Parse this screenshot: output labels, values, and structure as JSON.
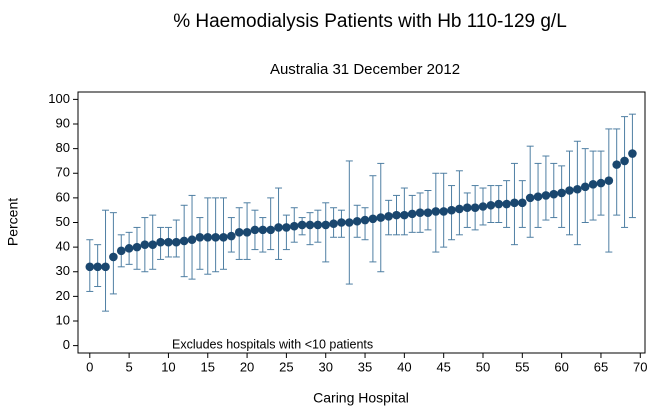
{
  "chart_data": {
    "type": "scatter",
    "title": "% Haemodialysis Patients with Hb 110-129 g/L",
    "subtitle": "Australia 31 December 2012",
    "annotation": "Excludes hospitals with <10 patients",
    "x_label": "Caring Hospital",
    "y_label": "Percent",
    "color": "#1a476f",
    "error_color": "#4f7fa3",
    "x": [
      0,
      1,
      2,
      3,
      4,
      5,
      6,
      7,
      8,
      9,
      10,
      11,
      12,
      13,
      14,
      15,
      16,
      17,
      18,
      19,
      20,
      21,
      22,
      23,
      24,
      25,
      26,
      27,
      28,
      29,
      30,
      31,
      32,
      33,
      34,
      35,
      36,
      37,
      38,
      39,
      40,
      41,
      42,
      43,
      44,
      45,
      46,
      47,
      48,
      49,
      50,
      51,
      52,
      53,
      54,
      55,
      56,
      57,
      58,
      59,
      60,
      61,
      62,
      63,
      64,
      65,
      66,
      67,
      68,
      69
    ],
    "values": [
      32,
      32,
      32,
      36,
      38.5,
      39.5,
      40,
      41,
      41,
      42,
      42,
      42,
      42.5,
      43,
      44,
      44,
      44,
      44,
      44.5,
      46,
      46,
      47,
      47,
      47,
      48,
      48,
      48.5,
      49,
      49,
      49,
      49,
      49.5,
      50,
      50,
      50.5,
      51,
      51.5,
      52,
      52.5,
      53,
      53,
      53.5,
      54,
      54,
      54.5,
      54.5,
      55,
      55.5,
      56,
      56,
      56.5,
      57,
      57.5,
      57.5,
      58,
      58,
      60,
      60.5,
      61,
      61.5,
      62,
      63,
      63.5,
      64.5,
      65.5,
      66,
      67,
      73.5,
      75,
      78
    ],
    "low": [
      22,
      24,
      14,
      21,
      32,
      33,
      31,
      30,
      31,
      35,
      36,
      36,
      28,
      27,
      31,
      29,
      30,
      31,
      38,
      35,
      35,
      39,
      38,
      39,
      35,
      39,
      42,
      45,
      41,
      42,
      34,
      44,
      44,
      25,
      44,
      43,
      34,
      30,
      45,
      45,
      45,
      46,
      46,
      47,
      38,
      40,
      43,
      45,
      48,
      47,
      49,
      50,
      50,
      48,
      41,
      48,
      44,
      48,
      51,
      52,
      48,
      45,
      41,
      50,
      51,
      53,
      38,
      53,
      48,
      52
    ],
    "high": [
      43,
      41,
      55,
      54,
      45,
      46,
      48,
      52,
      53,
      48,
      48,
      51,
      57,
      61,
      52,
      60,
      60,
      60,
      52,
      56,
      58,
      55,
      52,
      60,
      64,
      53,
      56,
      52,
      54,
      55,
      58,
      56,
      55,
      75,
      57,
      56,
      69,
      74,
      59,
      61,
      64,
      61,
      62,
      63,
      70,
      70,
      65,
      71,
      62,
      65,
      64,
      65,
      65,
      67,
      74,
      67,
      81,
      74,
      77,
      74,
      73,
      79,
      83,
      80,
      79,
      79,
      88,
      88,
      93,
      94
    ],
    "xlim": [
      -1.5,
      70.6
    ],
    "ylim": [
      -3,
      103
    ],
    "xticks": [
      0,
      5,
      10,
      15,
      20,
      25,
      30,
      35,
      40,
      45,
      50,
      55,
      60,
      65,
      70
    ],
    "yticks": [
      0,
      10,
      20,
      30,
      40,
      50,
      60,
      70,
      80,
      90,
      100
    ]
  }
}
